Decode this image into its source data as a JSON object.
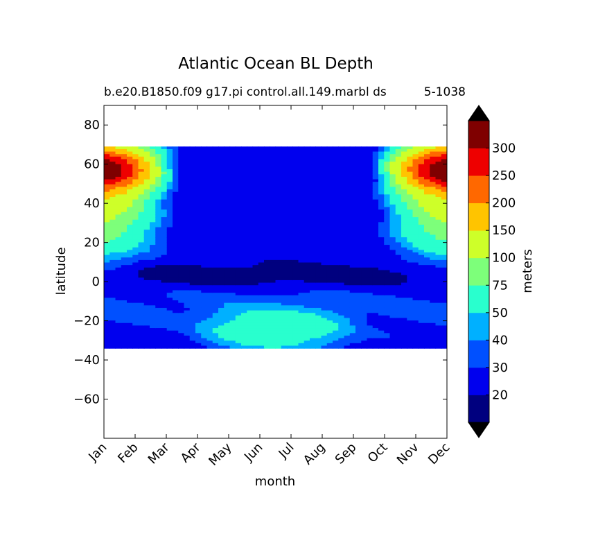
{
  "chart_data": {
    "type": "contourf",
    "title": "Atlantic Ocean BL Depth",
    "subtitle_left": "b.e20.B1850.f09 g17.pi control.all.149.marbl ds",
    "subtitle_right": "5-1038",
    "xlabel": "month",
    "ylabel": "latitude",
    "months": [
      "Jan",
      "Feb",
      "Mar",
      "Apr",
      "May",
      "Jun",
      "Jul",
      "Aug",
      "Sep",
      "Oct",
      "Nov",
      "Dec"
    ],
    "xlim": [
      0,
      11
    ],
    "ylim": [
      -80,
      90
    ],
    "yticks": [
      "80",
      "60",
      "40",
      "20",
      "0",
      "−20",
      "−40",
      "−60"
    ],
    "ytick_values": [
      80,
      60,
      40,
      20,
      0,
      -20,
      -40,
      -60
    ],
    "data_lat_range": [
      -34,
      69
    ],
    "colorbar": {
      "label": "meters",
      "levels": [
        20,
        30,
        40,
        50,
        75,
        100,
        150,
        200,
        250,
        300
      ],
      "level_labels": [
        "20",
        "30",
        "40",
        "50",
        "75",
        "100",
        "150",
        "200",
        "250",
        "300"
      ],
      "colors": [
        "#00007f",
        "#0000ee",
        "#0050ff",
        "#00b0ff",
        "#29ffce",
        "#7dff7a",
        "#ceff29",
        "#ffc400",
        "#ff6800",
        "#ee0000",
        "#7f0000"
      ],
      "extend": "both",
      "under_color": "#000000",
      "over_color": "#000000"
    }
  }
}
